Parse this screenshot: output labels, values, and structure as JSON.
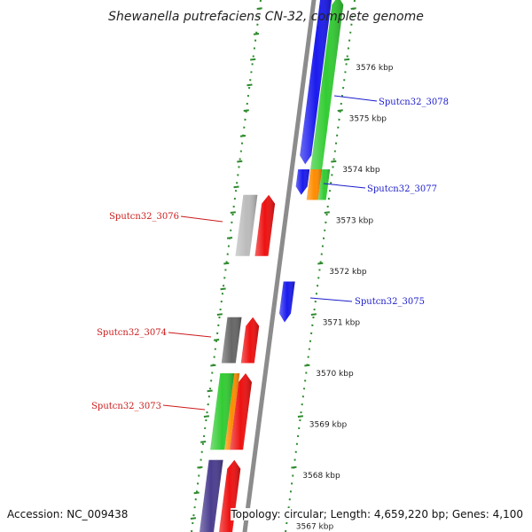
{
  "title": "Shewanella putrefaciens CN-32, complete genome",
  "footer": {
    "accession": "Accession: NC_009438",
    "genome_info": "Topology: circular; Length: 4,659,220 bp; Genes: 4,100"
  },
  "colors": {
    "backbone": "#8c8c8c",
    "tick": "#2e8b2e",
    "label_forward": "#1a1acc",
    "label_reverse": "#cc1a1a",
    "gene_blue": "#1a1aee",
    "gene_green": "#33cc33",
    "gene_orange": "#ff8c00",
    "gene_red": "#ee1111",
    "gene_grey": "#666666",
    "gene_lightgrey": "#bbbbbb",
    "gene_purple": "#4a3d8f"
  },
  "kbp_labels": [
    "3576 kbp",
    "3575 kbp",
    "3574 kbp",
    "3573 kbp",
    "3572 kbp",
    "3571 kbp",
    "3570 kbp",
    "3569 kbp",
    "3568 kbp",
    "3567 kbp"
  ],
  "gene_labels": [
    {
      "text": "Sputcn32_3078",
      "strand": "forward"
    },
    {
      "text": "Sputcn32_3077",
      "strand": "forward"
    },
    {
      "text": "Sputcn32_3076",
      "strand": "reverse"
    },
    {
      "text": "Sputcn32_3075",
      "strand": "forward"
    },
    {
      "text": "Sputcn32_3074",
      "strand": "reverse"
    },
    {
      "text": "Sputcn32_3073",
      "strand": "reverse"
    }
  ],
  "genes": [
    {
      "side": "outer",
      "lane": 1,
      "color": "gene_green",
      "start": 3573.8,
      "end": 3577.4,
      "dir": "up"
    },
    {
      "side": "outer",
      "lane": 0,
      "color": "gene_blue",
      "start": 3574.1,
      "end": 3577.4,
      "dir": "down"
    },
    {
      "side": "outer",
      "lane": 0,
      "color": "gene_blue",
      "start": 3573.5,
      "end": 3574.0,
      "dir": "down"
    },
    {
      "side": "outer",
      "lane": 1,
      "color": "gene_orange",
      "start": 3573.4,
      "end": 3574.0,
      "dir": "none"
    },
    {
      "side": "outer",
      "lane": 2,
      "color": "gene_green",
      "start": 3573.4,
      "end": 3574.0,
      "dir": "none"
    },
    {
      "side": "outer",
      "lane": 0,
      "color": "gene_blue",
      "start": 3571.0,
      "end": 3571.8,
      "dir": "down"
    },
    {
      "side": "inner",
      "lane": 0,
      "color": "gene_red",
      "start": 3572.3,
      "end": 3573.5,
      "dir": "up"
    },
    {
      "side": "inner",
      "lane": 2,
      "color": "gene_lightgrey",
      "start": 3572.3,
      "end": 3573.5,
      "dir": "none"
    },
    {
      "side": "inner",
      "lane": 0,
      "color": "gene_red",
      "start": 3570.2,
      "end": 3571.1,
      "dir": "up"
    },
    {
      "side": "inner",
      "lane": 2,
      "color": "gene_grey",
      "start": 3570.2,
      "end": 3571.1,
      "dir": "none"
    },
    {
      "side": "inner",
      "lane": 0,
      "color": "gene_red",
      "start": 3568.5,
      "end": 3570.0,
      "dir": "up"
    },
    {
      "side": "inner",
      "lane": 1,
      "color": "gene_orange",
      "start": 3568.5,
      "end": 3570.0,
      "dir": "none"
    },
    {
      "side": "inner",
      "lane": 2,
      "color": "gene_green",
      "start": 3568.5,
      "end": 3570.0,
      "dir": "none"
    },
    {
      "side": "inner",
      "lane": 0,
      "color": "gene_red",
      "start": 3566.8,
      "end": 3568.3,
      "dir": "up"
    },
    {
      "side": "inner",
      "lane": 2,
      "color": "gene_purple",
      "start": 3566.8,
      "end": 3568.3,
      "dir": "none"
    }
  ]
}
